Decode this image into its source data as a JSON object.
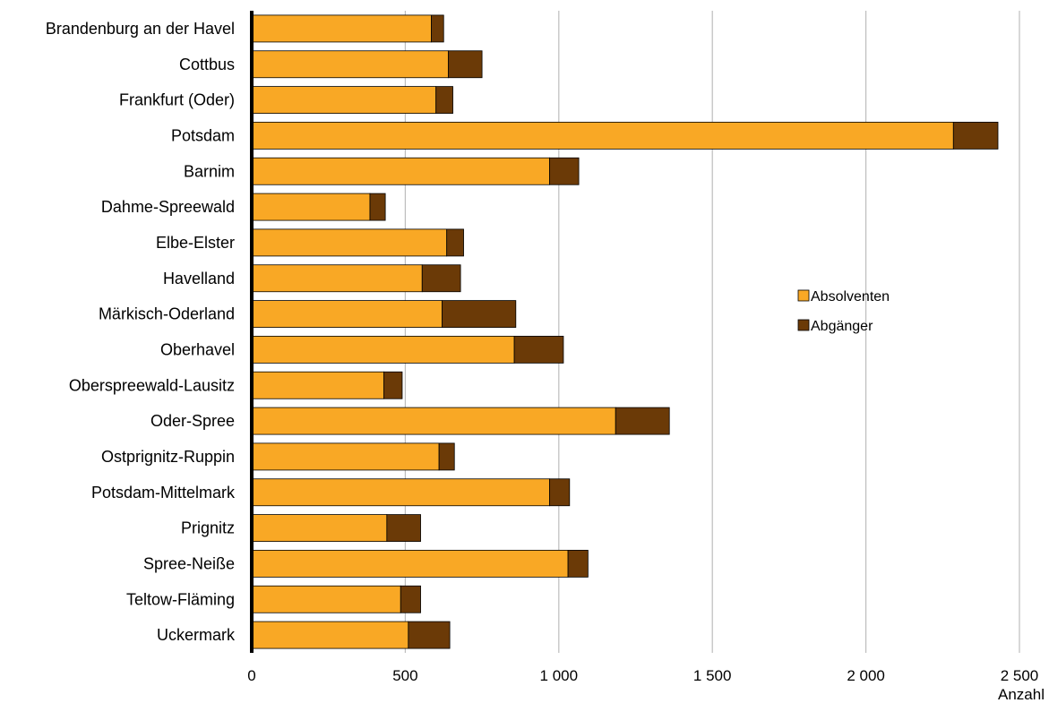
{
  "chart_data": {
    "type": "bar",
    "orientation": "horizontal",
    "stacked": true,
    "categories": [
      "Brandenburg an der Havel",
      "Cottbus",
      "Frankfurt (Oder)",
      "Potsdam",
      "Barnim",
      "Dahme-Spreewald",
      "Elbe-Elster",
      "Havelland",
      "Märkisch-Oderland",
      "Oberhavel",
      "Oberspreewald-Lausitz",
      "Oder-Spree",
      "Ostprignitz-Ruppin",
      "Potsdam-Mittelmark",
      "Prignitz",
      "Spree-Neiße",
      "Teltow-Fläming",
      "Uckermark"
    ],
    "series": [
      {
        "name": "Absolventen",
        "color": "#F9A825",
        "values": [
          585,
          640,
          600,
          2285,
          970,
          385,
          635,
          555,
          620,
          855,
          430,
          1185,
          610,
          970,
          440,
          1030,
          485,
          510
        ]
      },
      {
        "name": "Abgänger",
        "color": "#6B3A07",
        "values": [
          40,
          110,
          55,
          145,
          95,
          50,
          55,
          125,
          240,
          160,
          60,
          175,
          50,
          65,
          110,
          65,
          65,
          135
        ]
      }
    ],
    "x_ticks": [
      "0",
      "500",
      "1 000",
      "1 500",
      "2 000",
      "2 500"
    ],
    "x_tick_values": [
      0,
      500,
      1000,
      1500,
      2000,
      2500
    ],
    "xlim": [
      0,
      2500
    ],
    "xlabel": "Anzahl",
    "grid": true,
    "legend_position": "right"
  }
}
